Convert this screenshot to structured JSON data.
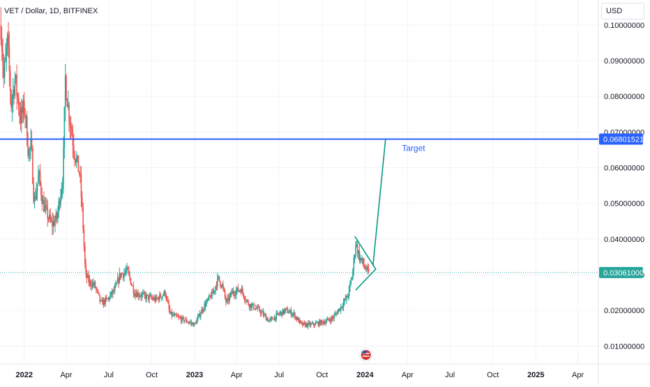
{
  "chart_data": {
    "type": "candlestick",
    "title": "VET / Dollar, 1D, BITFINEX",
    "currency": "USD",
    "ylim": [
      0.005,
      0.107
    ],
    "y_ticks": [
      "0.01000000",
      "0.02000000",
      "0.03000000",
      "0.04000000",
      "0.05000000",
      "0.06000000",
      "0.07000000",
      "0.08000000",
      "0.09000000",
      "0.10000000"
    ],
    "y_tick_values": [
      0.01,
      0.02,
      0.03,
      0.04,
      0.05,
      0.06,
      0.07,
      0.08,
      0.09,
      0.1
    ],
    "x_ticks": [
      {
        "date": "2022-01-01",
        "label": "2022",
        "bold": true
      },
      {
        "date": "2022-04-01",
        "label": "Apr",
        "bold": false
      },
      {
        "date": "2022-07-01",
        "label": "Jul",
        "bold": false
      },
      {
        "date": "2022-10-01",
        "label": "Oct",
        "bold": false
      },
      {
        "date": "2023-01-01",
        "label": "2023",
        "bold": true
      },
      {
        "date": "2023-04-01",
        "label": "Apr",
        "bold": false
      },
      {
        "date": "2023-07-01",
        "label": "Jul",
        "bold": false
      },
      {
        "date": "2023-10-01",
        "label": "Oct",
        "bold": false
      },
      {
        "date": "2024-01-01",
        "label": "2024",
        "bold": true
      },
      {
        "date": "2024-04-01",
        "label": "Apr",
        "bold": false
      },
      {
        "date": "2024-07-01",
        "label": "Jul",
        "bold": false
      },
      {
        "date": "2024-10-01",
        "label": "Oct",
        "bold": false
      },
      {
        "date": "2025-01-01",
        "label": "2025",
        "bold": true
      },
      {
        "date": "2025-04-01",
        "label": "Apr",
        "bold": false
      }
    ],
    "x_range": [
      "2021-11-10",
      "2025-05-15"
    ],
    "price_path": [
      [
        "2021-11-12",
        0.1
      ],
      [
        "2021-11-18",
        0.085
      ],
      [
        "2021-11-26",
        0.095
      ],
      [
        "2021-12-04",
        0.078
      ],
      [
        "2021-12-12",
        0.085
      ],
      [
        "2021-12-24",
        0.074
      ],
      [
        "2022-01-02",
        0.077
      ],
      [
        "2022-01-10",
        0.064
      ],
      [
        "2022-01-16",
        0.066
      ],
      [
        "2022-01-22",
        0.05
      ],
      [
        "2022-02-01",
        0.058
      ],
      [
        "2022-02-10",
        0.05
      ],
      [
        "2022-02-22",
        0.046
      ],
      [
        "2022-03-01",
        0.044
      ],
      [
        "2022-03-12",
        0.046
      ],
      [
        "2022-03-25",
        0.058
      ],
      [
        "2022-03-30",
        0.085
      ],
      [
        "2022-04-05",
        0.077
      ],
      [
        "2022-04-18",
        0.065
      ],
      [
        "2022-04-30",
        0.058
      ],
      [
        "2022-05-06",
        0.046
      ],
      [
        "2022-05-12",
        0.03
      ],
      [
        "2022-05-20",
        0.028
      ],
      [
        "2022-06-01",
        0.027
      ],
      [
        "2022-06-14",
        0.022
      ],
      [
        "2022-06-28",
        0.023
      ],
      [
        "2022-07-15",
        0.026
      ],
      [
        "2022-07-25",
        0.03
      ],
      [
        "2022-08-10",
        0.031
      ],
      [
        "2022-08-25",
        0.025
      ],
      [
        "2022-09-15",
        0.024
      ],
      [
        "2022-10-10",
        0.023
      ],
      [
        "2022-10-30",
        0.025
      ],
      [
        "2022-11-09",
        0.019
      ],
      [
        "2022-11-25",
        0.018
      ],
      [
        "2022-12-15",
        0.017
      ],
      [
        "2023-01-01",
        0.016
      ],
      [
        "2023-01-20",
        0.021
      ],
      [
        "2023-02-10",
        0.025
      ],
      [
        "2023-02-20",
        0.029
      ],
      [
        "2023-03-01",
        0.027
      ],
      [
        "2023-03-10",
        0.022
      ],
      [
        "2023-03-22",
        0.025
      ],
      [
        "2023-04-10",
        0.026
      ],
      [
        "2023-04-25",
        0.022
      ],
      [
        "2023-05-20",
        0.02
      ],
      [
        "2023-06-10",
        0.017
      ],
      [
        "2023-06-20",
        0.018
      ],
      [
        "2023-07-01",
        0.019
      ],
      [
        "2023-07-15",
        0.02
      ],
      [
        "2023-08-01",
        0.019
      ],
      [
        "2023-08-18",
        0.016
      ],
      [
        "2023-09-10",
        0.016
      ],
      [
        "2023-10-10",
        0.017
      ],
      [
        "2023-10-25",
        0.018
      ],
      [
        "2023-11-10",
        0.021
      ],
      [
        "2023-11-25",
        0.024
      ],
      [
        "2023-12-05",
        0.03
      ],
      [
        "2023-12-12",
        0.039
      ],
      [
        "2023-12-20",
        0.035
      ],
      [
        "2023-12-28",
        0.033
      ],
      [
        "2024-01-05",
        0.031
      ],
      [
        "2024-01-10",
        0.03
      ]
    ],
    "horizontal_line": {
      "value": 0.06801521,
      "label": "0.06801521",
      "color": "#2962ff"
    },
    "current_price": {
      "value": 0.03061,
      "label": "0.03061000",
      "color": "#26a69a"
    },
    "annotations": [
      {
        "text": "Target",
        "date": "2024-03-20",
        "value": 0.0655,
        "color": "#2962ff"
      }
    ],
    "drawings": {
      "color": "#089981",
      "triangle": [
        [
          "2023-12-10",
          0.0408
        ],
        [
          "2024-01-24",
          0.0316
        ],
        [
          "2023-12-12",
          0.0257
        ],
        [
          "2024-01-24",
          0.0316
        ]
      ],
      "projection": [
        [
          "2024-01-18",
          0.0325
        ],
        [
          "2024-02-14",
          0.068
        ]
      ]
    },
    "colors": {
      "up": "#26a69a",
      "down": "#ef5350",
      "grid": "#f0f3fa",
      "axis_text": "#131722",
      "border": "#e0e3eb"
    },
    "grid": true,
    "event_icon": {
      "date": "2024-01-03",
      "name": "us-flag-event-icon"
    }
  }
}
